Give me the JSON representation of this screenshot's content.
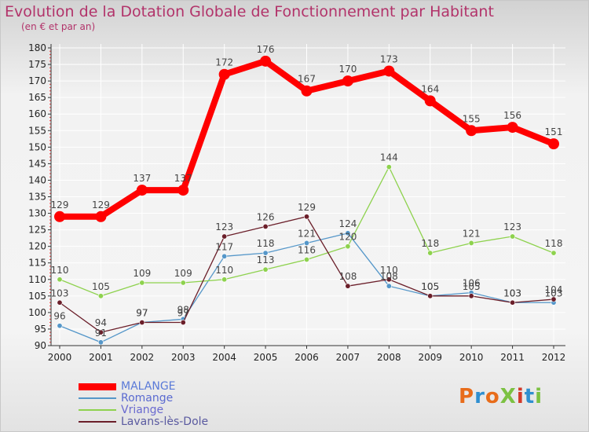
{
  "title": "Evolution de la Dotation Globale de Fonctionnement par Habitant",
  "subtitle": "(en € et par an)",
  "logo": {
    "text": "ProXiti",
    "colors": [
      "#e86c1a",
      "#2f8fd0",
      "#e86c1a",
      "#7cc142",
      "#d23a2a",
      "#2f8fd0",
      "#7cc142"
    ]
  },
  "colors": {
    "title": "#b2336a",
    "axis": "#333333",
    "grid": "#ffffff",
    "malange": "#ff0000",
    "romange": "#5597c9",
    "vriange": "#8ed24e",
    "lavans": "#6b1f2a"
  },
  "chart_data": {
    "type": "line",
    "title": "Evolution de la Dotation Globale de Fonctionnement par Habitant",
    "subtitle": "(en € et par an)",
    "x": [
      "2000",
      "2001",
      "2002",
      "2003",
      "2004",
      "2005",
      "2006",
      "2007",
      "2008",
      "2009",
      "2010",
      "2011",
      "2012"
    ],
    "ylim": [
      90,
      180
    ],
    "yticks": [
      90,
      95,
      100,
      105,
      110,
      115,
      120,
      125,
      130,
      135,
      140,
      145,
      150,
      155,
      160,
      165,
      170,
      175,
      180
    ],
    "grid": true,
    "legend": "bottom-left",
    "series": [
      {
        "name": "MALANGE",
        "color": "#ff0000",
        "values": [
          129,
          129,
          137,
          137,
          172,
          176,
          167,
          170,
          173,
          164,
          155,
          156,
          151
        ]
      },
      {
        "name": "Romange",
        "color": "#5597c9",
        "values": [
          96,
          91,
          97,
          98,
          117,
          118,
          121,
          124,
          108,
          105,
          106,
          103,
          103
        ]
      },
      {
        "name": "Vriange",
        "color": "#8ed24e",
        "values": [
          110,
          105,
          109,
          109,
          110,
          113,
          116,
          120,
          144,
          118,
          121,
          123,
          118
        ]
      },
      {
        "name": "Lavans-lès-Dole",
        "color": "#6b1f2a",
        "values": [
          103,
          94,
          97,
          97,
          123,
          126,
          129,
          108,
          110,
          105,
          105,
          103,
          104
        ]
      }
    ]
  }
}
